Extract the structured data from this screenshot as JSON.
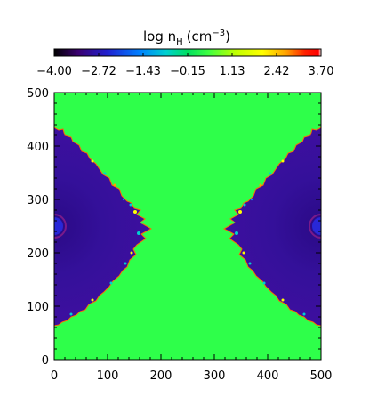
{
  "chart_data": {
    "type": "heatmap",
    "colorbar": {
      "title_main": "log n",
      "title_sub": "H",
      "title_units": "(cm",
      "title_exp": "−3",
      "title_close": ")",
      "tick_labels": [
        "−4.00",
        "−2.72",
        "−1.43",
        "−0.15",
        "1.13",
        "2.42",
        "3.70"
      ],
      "range": [
        -4.0,
        3.7
      ],
      "colormap": [
        "#000000",
        "#3a0070",
        "#2020d0",
        "#0080ff",
        "#00d0d0",
        "#00e060",
        "#40ff40",
        "#c0ff00",
        "#ffff00",
        "#ffa000",
        "#ff2000",
        "#ff0000"
      ]
    },
    "xlim": [
      0,
      500
    ],
    "ylim": [
      0,
      500
    ],
    "x_ticks": [
      0,
      100,
      200,
      300,
      400,
      500
    ],
    "y_ticks": [
      0,
      100,
      200,
      300,
      400,
      500
    ],
    "x_tick_labels": [
      "0",
      "100",
      "200",
      "300",
      "400",
      "500"
    ],
    "y_tick_labels": [
      "0",
      "100",
      "200",
      "300",
      "400",
      "500"
    ],
    "background_value": -0.15,
    "regions": [
      {
        "shape": "left-semicircle",
        "center": [
          0,
          250
        ],
        "radius": 180,
        "value": -2.9
      },
      {
        "shape": "right-semicircle",
        "center": [
          500,
          250
        ],
        "radius": 180,
        "value": -2.9
      }
    ],
    "colors": {
      "background": "#2eff4a",
      "blob_outer": "#3a0d9a",
      "blob_inner": "#2a0a86",
      "core": "#2828d8",
      "ring": "#7a1a8a"
    }
  }
}
